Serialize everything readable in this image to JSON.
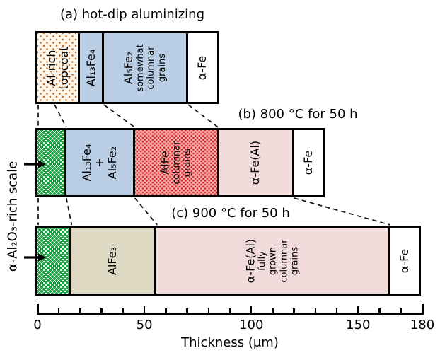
{
  "colors": {
    "light_blue": "#b9cde5",
    "pink": "#f1dcdb",
    "tan": "#ddd9c3",
    "red_base": "#f5b0ae",
    "red_dot": "#d62b2b",
    "green_dot": "#1ca342",
    "orange_dot": "#cf7020",
    "outline": "#000000",
    "background": "#ffffff"
  },
  "icons": {
    "scale_pointer_b": "arrow-right-icon",
    "scale_pointer_c": "arrow-right-icon"
  },
  "chart_data": {
    "type": "bar",
    "orientation": "horizontal-layer-diagram",
    "xlabel": "Thickness (μm)",
    "xlim": [
      0,
      180
    ],
    "x_major_ticks": [
      0,
      50,
      100,
      150,
      180
    ],
    "x_minor_step": 10,
    "side_label": "α-Al₂O₃-rich scale",
    "rows": [
      {
        "id": "a",
        "title": "(a) hot-dip aluminizing",
        "segments": [
          {
            "name": "al-rich-topcoat",
            "label": "Al-rich\ntopcoat",
            "start_um": 0,
            "end_um": 20,
            "fill": "orange-stipple"
          },
          {
            "name": "al13fe4",
            "label": "Al₁₃Fe₄",
            "start_um": 20,
            "end_um": 31,
            "fill": "light-blue"
          },
          {
            "name": "al5fe2",
            "label": "Al₅Fe₂",
            "sublabel": "somewhat\ncolumnar\ngrains",
            "start_um": 31,
            "end_um": 70.5,
            "fill": "light-blue"
          },
          {
            "name": "alpha-fe",
            "label": "α-Fe",
            "start_um": 70.5,
            "end_um": 84,
            "fill": "white"
          }
        ]
      },
      {
        "id": "b",
        "title": "(b) 800 °C for 50 h",
        "segments": [
          {
            "name": "alumina-scale",
            "label": "",
            "start_um": 0,
            "end_um": 13.5,
            "fill": "green-checker"
          },
          {
            "name": "al13fe4-plus-al5fe2",
            "label": "Al₁₃Fe₄\n+\nAl₅Fe₂",
            "start_um": 13.5,
            "end_um": 45.5,
            "fill": "light-blue"
          },
          {
            "name": "alfe",
            "label": "AlFe",
            "sublabel": "columnar\ngrains",
            "start_um": 45.5,
            "end_um": 85,
            "fill": "red-stipple"
          },
          {
            "name": "alpha-fe-al",
            "label": "α-Fe(Al)",
            "start_um": 85,
            "end_um": 120,
            "fill": "pink"
          },
          {
            "name": "alpha-fe",
            "label": "α-Fe",
            "start_um": 120,
            "end_um": 133.5,
            "fill": "white"
          }
        ]
      },
      {
        "id": "c",
        "title": "(c) 900 °C for 50 h",
        "segments": [
          {
            "name": "alumina-scale",
            "label": "",
            "start_um": 0,
            "end_um": 15.5,
            "fill": "green-checker"
          },
          {
            "name": "alfe3",
            "label": "AlFe₃",
            "start_um": 15.5,
            "end_um": 55.5,
            "fill": "tan"
          },
          {
            "name": "alpha-fe-al",
            "label": "α-Fe(Al)",
            "sublabel": "fully\ngrown\ncolumnar\ngrains",
            "start_um": 55.5,
            "end_um": 165,
            "fill": "pink"
          },
          {
            "name": "alpha-fe",
            "label": "α-Fe",
            "start_um": 165,
            "end_um": 178.5,
            "fill": "white"
          }
        ]
      }
    ],
    "connectors": {
      "a_to_b": [
        {
          "from_um": 0,
          "to_um": 0
        },
        {
          "from_um": 8,
          "to_um": 13.5
        },
        {
          "from_um": 31,
          "to_um": 45.5
        },
        {
          "from_um": 70.5,
          "to_um": 84.5
        }
      ],
      "b_to_c": [
        {
          "from_um": 0,
          "to_um": 0
        },
        {
          "from_um": 13.5,
          "to_um": 16
        },
        {
          "from_um": 45.5,
          "to_um": 56
        },
        {
          "from_um": 120,
          "to_um": 165
        }
      ]
    }
  }
}
